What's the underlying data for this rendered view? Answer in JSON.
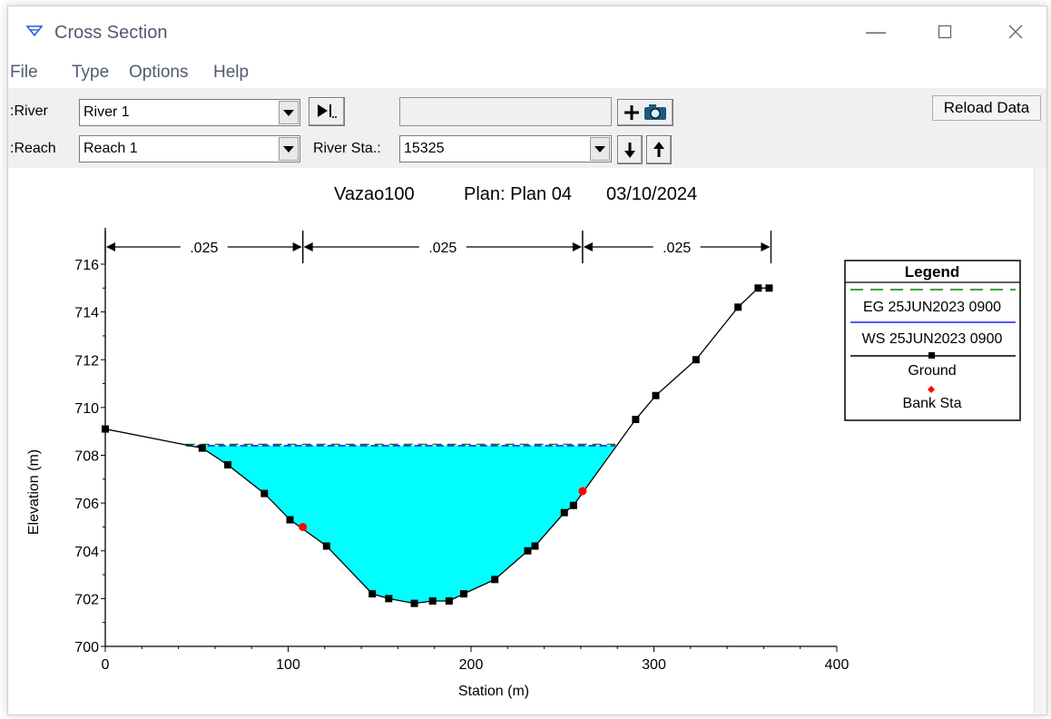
{
  "window": {
    "title": "Cross Section",
    "menu": [
      "File",
      "Type",
      "Options",
      "Help"
    ]
  },
  "toolbar": {
    "river_label": "River:",
    "river_value": "River 1",
    "reach_label": "Reach:",
    "reach_value": "Reach 1",
    "river_sta_label": "River Sta.:",
    "river_sta_value": "15325",
    "reload_label": "Reload Data"
  },
  "chart_data": {
    "type": "line",
    "title_parts": [
      "Vazao100",
      "Plan: Plan 04",
      "03/10/2024"
    ],
    "xlabel": "Station (m)",
    "ylabel": "Elevation (m)",
    "xlim": [
      0,
      400
    ],
    "ylim": [
      700,
      716
    ],
    "xticks": [
      "0",
      "100",
      "200",
      "300",
      "400"
    ],
    "yticks": [
      "700",
      "702",
      "704",
      "706",
      "708",
      "710",
      "712",
      "714",
      "716"
    ],
    "manning": [
      {
        "from": 0,
        "to": 108,
        "label": ".025"
      },
      {
        "from": 108,
        "to": 261,
        "label": ".025"
      },
      {
        "from": 261,
        "to": 364,
        "label": ".025"
      }
    ],
    "ground": {
      "name": "Ground",
      "x": [
        0,
        53,
        67,
        87,
        101,
        121,
        146,
        155,
        169,
        179,
        188,
        196,
        213,
        231,
        235,
        251,
        256,
        290,
        301,
        323,
        346,
        357,
        363
      ],
      "y": [
        709.1,
        708.3,
        707.6,
        706.4,
        705.3,
        704.2,
        702.2,
        702.0,
        701.8,
        701.9,
        701.9,
        702.2,
        702.8,
        704.0,
        704.2,
        705.6,
        705.9,
        709.5,
        710.5,
        712.0,
        714.2,
        715.0,
        715.0
      ]
    },
    "water_surface": {
      "name": "WS 25JUN2023 0900",
      "elevation": 708.4,
      "x_start": 44,
      "x_end": 279
    },
    "energy_grade": {
      "name": "EG 25JUN2023 0900",
      "elevation": 708.42
    },
    "bank_stations": {
      "name": "Bank Sta",
      "x": [
        108,
        261
      ],
      "y": [
        705.0,
        706.5
      ]
    },
    "legend": {
      "title": "Legend",
      "position": "right",
      "entries": [
        "EG 25JUN2023 0900",
        "WS 25JUN2023 0900",
        "Ground",
        "Bank Sta"
      ]
    },
    "colors": {
      "water": "#00ffff",
      "eg": "#008000",
      "ws": "#2020ff",
      "ground": "#000000",
      "bank": "#ff0000"
    }
  }
}
